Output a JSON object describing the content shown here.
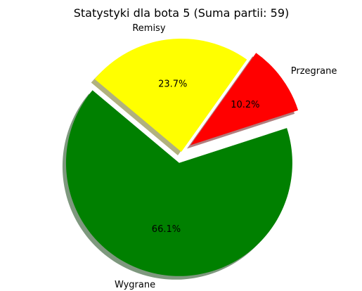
{
  "chart_data": {
    "type": "pie",
    "title": "Statystyki dla bota 5 (Suma partii: 59)",
    "slices": [
      {
        "label": "Wygrane",
        "value": 39,
        "percent_label": "66.1%",
        "color": "#008000",
        "exploded": true
      },
      {
        "label": "Przegrane",
        "value": 6,
        "percent_label": "10.2%",
        "color": "#ff0000",
        "exploded": true
      },
      {
        "label": "Remisy",
        "value": 14,
        "percent_label": "23.7%",
        "color": "#ffff00",
        "exploded": false
      }
    ],
    "start_angle_deg": 140,
    "direction": "counterclockwise",
    "shadow": true,
    "legend": false,
    "grid": false
  }
}
